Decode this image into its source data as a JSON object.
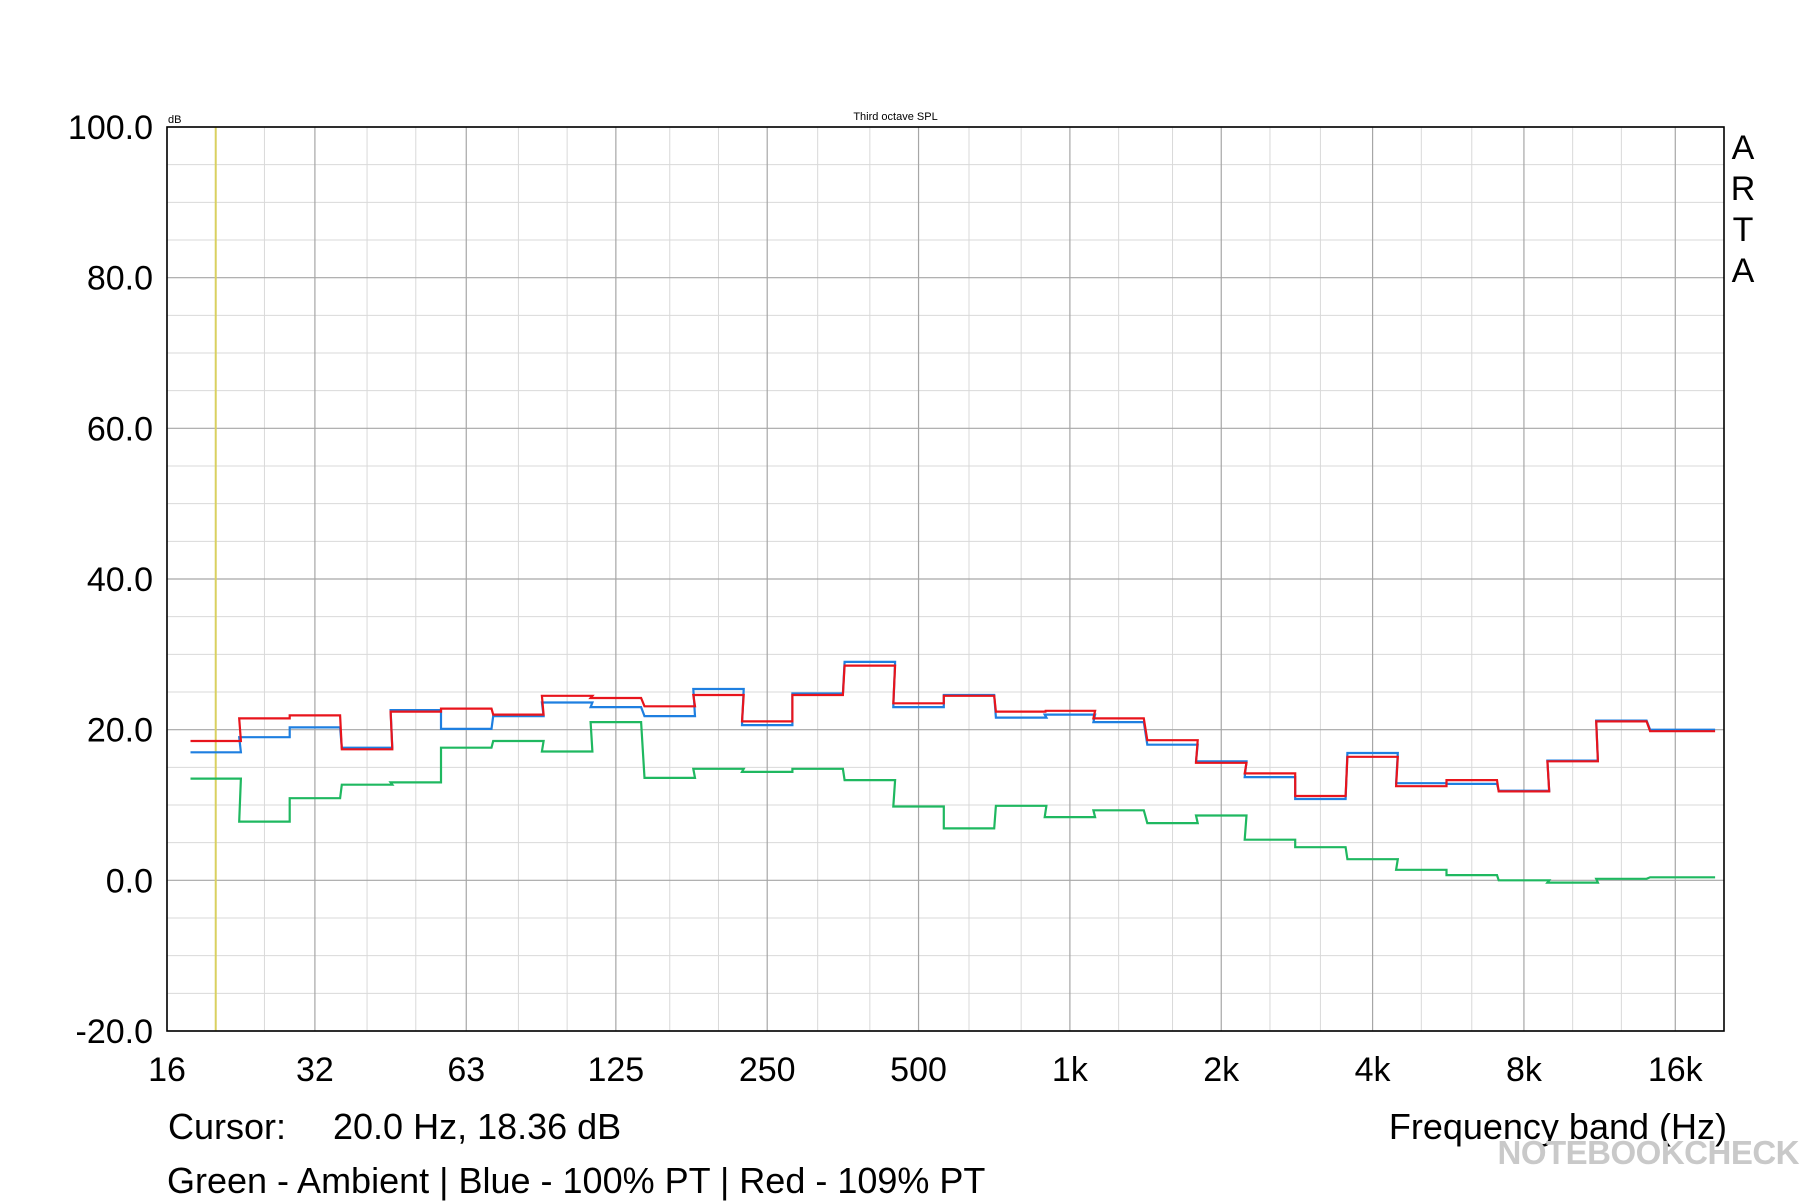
{
  "chart_data": {
    "type": "line",
    "title": "Third octave SPL",
    "ylabel": "dB",
    "xlabel": "Frequency band (Hz)",
    "ylim": [
      -20,
      100
    ],
    "y_ticks": [
      -20,
      0,
      20,
      40,
      60,
      80,
      100
    ],
    "y_tick_labels": [
      "-20.0",
      "0.0",
      "20.0",
      "40.0",
      "60.0",
      "80.0",
      "100.0"
    ],
    "x_scale": "log",
    "xlim": [
      16,
      20000
    ],
    "x_ticks": [
      16,
      31.5,
      63,
      125,
      250,
      500,
      1000,
      2000,
      4000,
      8000,
      16000
    ],
    "x_tick_labels": [
      "16",
      "32",
      "63",
      "125",
      "250",
      "500",
      "1k",
      "2k",
      "4k",
      "8k",
      "16k"
    ],
    "grid": true,
    "step_bands_hz": [
      20,
      25,
      31.5,
      40,
      50,
      63,
      80,
      100,
      125,
      160,
      200,
      250,
      315,
      400,
      500,
      630,
      800,
      1000,
      1250,
      1600,
      2000,
      2500,
      3150,
      4000,
      5000,
      6300,
      8000,
      10000,
      12500,
      16000,
      20000
    ],
    "series": [
      {
        "color": "#1fb860",
        "values": [
          13.5,
          7.8,
          10.9,
          12.7,
          13.0,
          17.6,
          18.5,
          17.1,
          21.0,
          13.6,
          14.8,
          14.4,
          14.8,
          13.3,
          9.8,
          6.9,
          9.9,
          8.4,
          9.3,
          7.6,
          8.6,
          5.4,
          4.4,
          2.8,
          1.4,
          0.7,
          0.0,
          -0.3,
          0.2,
          0.4,
          0.4
        ]
      },
      {
        "color": "#1e7fe0",
        "values": [
          17.0,
          19.0,
          20.3,
          17.6,
          22.6,
          20.1,
          21.8,
          23.6,
          23.0,
          21.8,
          25.4,
          20.6,
          24.8,
          29.0,
          23.0,
          24.6,
          21.6,
          22.0,
          21.0,
          18.0,
          15.8,
          13.7,
          10.8,
          16.9,
          12.9,
          12.8,
          11.9,
          15.9,
          21.2,
          20.0,
          20.0
        ]
      },
      {
        "color": "#e8141c",
        "values": [
          18.5,
          21.5,
          21.9,
          17.4,
          22.4,
          22.8,
          22.0,
          24.5,
          24.2,
          23.1,
          24.6,
          21.1,
          24.6,
          28.5,
          23.5,
          24.5,
          22.4,
          22.5,
          21.5,
          18.6,
          15.6,
          14.2,
          11.2,
          16.4,
          12.5,
          13.3,
          11.8,
          15.8,
          21.1,
          19.8,
          19.8
        ]
      }
    ],
    "cursor_x_hz": 20.0
  },
  "cursor_label": "Cursor:",
  "cursor_value": "20.0 Hz, 18.36 dB",
  "caption": "Green - Ambient | Blue - 100% PT | Red - 109% PT",
  "watermark": "ARTA",
  "brand": "NOTEBOOKCHECK",
  "colors": {
    "grid_major": "#a6a6a6",
    "grid_minor": "#d9d9d9",
    "cursor": "#d9d060",
    "frame": "#000000"
  }
}
